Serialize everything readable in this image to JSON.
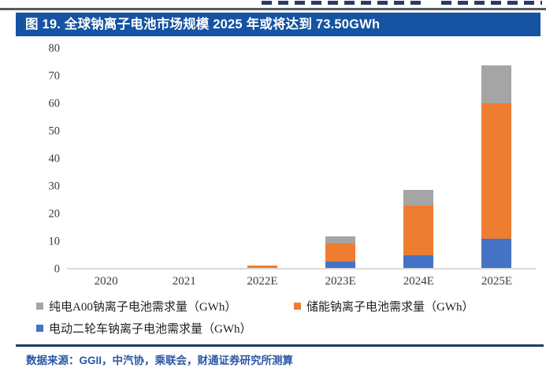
{
  "header": {
    "title": "图 19. 全球钠离子电池市场规模 2025 年或将达到 73.50GWh"
  },
  "footer": {
    "source": "数据来源：GGII，中汽协，乘联会，财通证券研究所测算"
  },
  "legend": {
    "items": [
      {
        "label": "纯电A00钠离子电池需求量（GWh）",
        "color": "#A5A5A5"
      },
      {
        "label": "储能钠离子电池需求量（GWh）",
        "color": "#ED7D31"
      },
      {
        "label": "电动二轮车钠离子电池需求量（GWh）",
        "color": "#4472C4"
      }
    ]
  },
  "colors": {
    "title_bar": "#1553A3",
    "footer_text": "#2B57A7",
    "separator": "#1F3864",
    "axis_baseline": "#D9D9D9"
  },
  "chart_data": {
    "type": "bar",
    "stacked": true,
    "title": "图 19. 全球钠离子电池市场规模 2025 年或将达到 73.50GWh",
    "xlabel": "",
    "ylabel": "",
    "categories": [
      "2020",
      "2021",
      "2022E",
      "2023E",
      "2024E",
      "2025E"
    ],
    "series": [
      {
        "name": "电动二轮车钠离子电池需求量（GWh）",
        "color": "#4472C4",
        "values": [
          0,
          0,
          0,
          2.4,
          4.6,
          10.6
        ]
      },
      {
        "name": "储能钠离子电池需求量（GWh）",
        "color": "#ED7D31",
        "values": [
          0,
          0,
          1.0,
          6.4,
          17.9,
          49.0
        ]
      },
      {
        "name": "纯电A00钠离子电池需求量（GWh）",
        "color": "#A5A5A5",
        "values": [
          0,
          0,
          0,
          2.5,
          5.7,
          13.9
        ]
      }
    ],
    "stack_order_bottom_to_top": [
      "电动二轮车",
      "储能",
      "纯电A00"
    ],
    "ylim": [
      0,
      80
    ],
    "yticks": [
      0,
      10,
      20,
      30,
      40,
      50,
      60,
      70,
      80
    ],
    "grid": false,
    "legend_position": "bottom"
  }
}
